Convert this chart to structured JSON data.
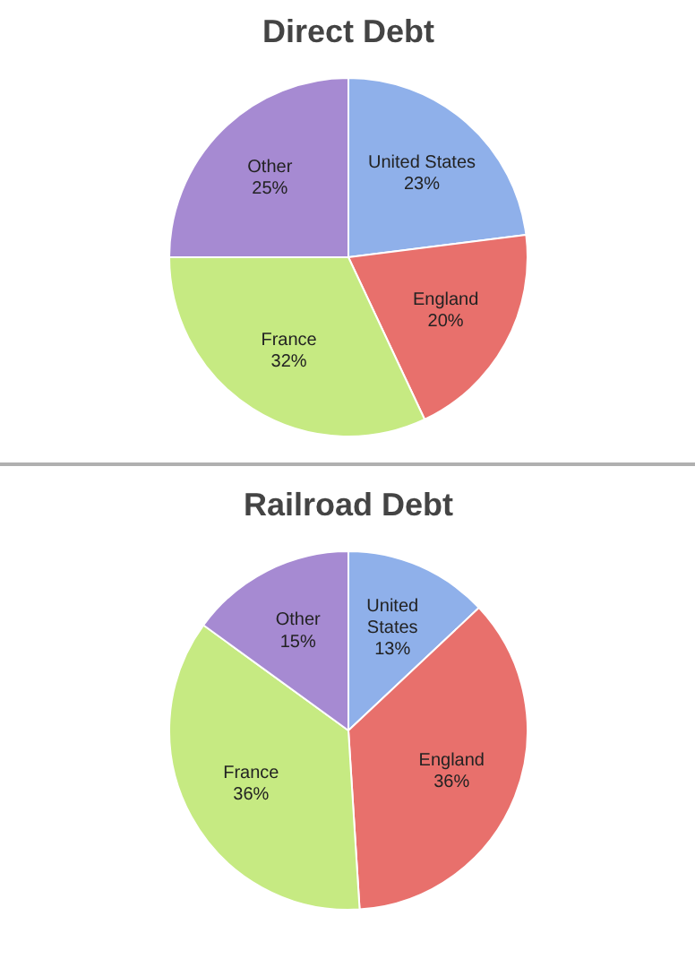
{
  "chart_data": [
    {
      "type": "pie",
      "title": "Direct Debt",
      "categories": [
        "United States",
        "England",
        "France",
        "Other"
      ],
      "values": [
        23,
        20,
        32,
        25
      ],
      "value_labels": [
        "23%",
        "20%",
        "32%",
        "25%"
      ],
      "colors": [
        "#8fb0ea",
        "#e8706c",
        "#c6ea82",
        "#a68ad2"
      ]
    },
    {
      "type": "pie",
      "title": "Railroad Debt",
      "categories": [
        "United States",
        "England",
        "France",
        "Other"
      ],
      "values": [
        13,
        36,
        36,
        15
      ],
      "value_labels": [
        "13%",
        "36%",
        "36%",
        "15%"
      ],
      "colors": [
        "#8fb0ea",
        "#e8706c",
        "#c6ea82",
        "#a68ad2"
      ]
    }
  ]
}
